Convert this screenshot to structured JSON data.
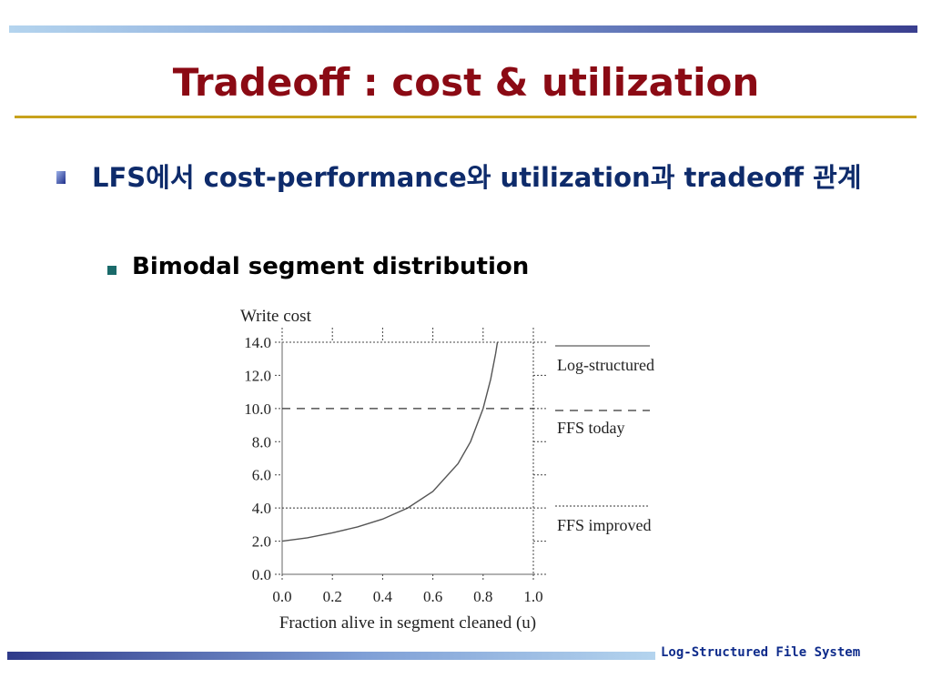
{
  "slide": {
    "title": "Tradeoff : cost & utilization",
    "bullet_main": "LFS에서 cost-performance와 utilization과 tradeoff 관계",
    "bullet_sub": "Bimodal segment distribution",
    "footer": "Log-Structured File System",
    "colors": {
      "title": "#8b0a14",
      "bullet_text": "#0e2b6b",
      "rule": "#c8a21c",
      "footer": "#0e2b8b"
    }
  },
  "chart_data": {
    "type": "line",
    "ylabel": "Write cost",
    "xlabel": "Fraction alive in segment cleaned (u)",
    "xlim": [
      0.0,
      1.0
    ],
    "ylim": [
      0.0,
      14.0
    ],
    "x_ticks": [
      "0.0",
      "0.2",
      "0.4",
      "0.6",
      "0.8",
      "1.0"
    ],
    "y_ticks": [
      "0.0",
      "2.0",
      "4.0",
      "6.0",
      "8.0",
      "10.0",
      "12.0",
      "14.0"
    ],
    "grid": "dotted",
    "series": [
      {
        "name": "Log-structured",
        "style": "solid",
        "x": [
          0.0,
          0.1,
          0.2,
          0.3,
          0.4,
          0.5,
          0.6,
          0.7,
          0.75,
          0.8,
          0.83,
          0.85,
          0.857
        ],
        "y": [
          2.0,
          2.2,
          2.5,
          2.86,
          3.33,
          4.0,
          5.0,
          6.67,
          8.0,
          10.0,
          11.76,
          13.33,
          14.0
        ]
      },
      {
        "name": "FFS today",
        "style": "dashed",
        "x": [
          0.0,
          1.0
        ],
        "y": [
          10.0,
          10.0
        ]
      },
      {
        "name": "FFS improved",
        "style": "dotted",
        "x": [
          0.0,
          1.0
        ],
        "y": [
          4.0,
          4.0
        ]
      }
    ]
  }
}
